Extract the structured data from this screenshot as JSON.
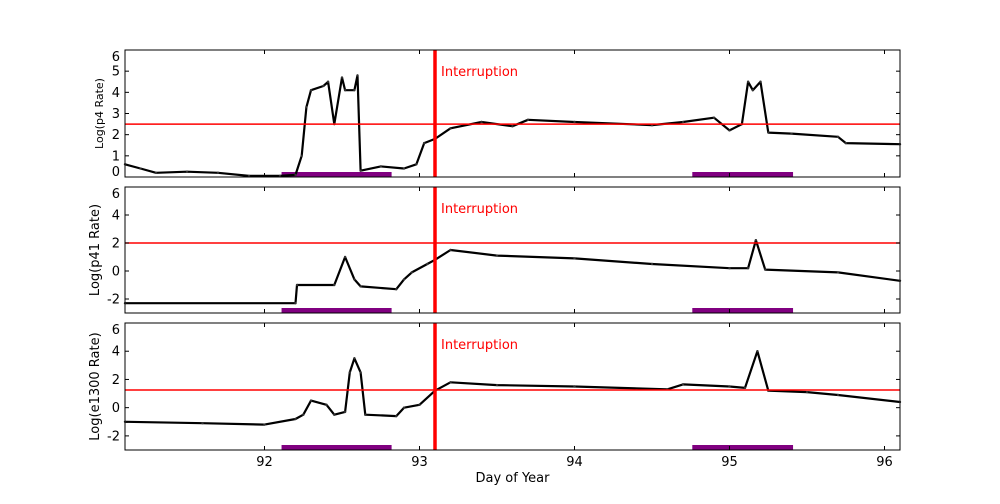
{
  "chart_data": [
    {
      "type": "line",
      "ylabel": "Log(p4 Rate)",
      "xlim": [
        91.1,
        96.1
      ],
      "ylim": [
        0,
        6
      ],
      "yticks": [
        0,
        1,
        2,
        3,
        4,
        5,
        6
      ],
      "threshold": 2.5,
      "annotation": "Interruption",
      "interruption_x": 93.1,
      "bars": [
        [
          92.11,
          92.82
        ],
        [
          94.76,
          95.41
        ]
      ],
      "series": [
        {
          "points": [
            [
              91.1,
              0.6
            ],
            [
              91.2,
              0.4
            ],
            [
              91.3,
              0.2
            ],
            [
              91.5,
              0.25
            ],
            [
              91.7,
              0.2
            ],
            [
              91.9,
              0.05
            ],
            [
              92.1,
              0.05
            ],
            [
              92.2,
              0.1
            ],
            [
              92.24,
              1.0
            ],
            [
              92.27,
              3.3
            ],
            [
              92.3,
              4.1
            ],
            [
              92.38,
              4.3
            ],
            [
              92.41,
              4.5
            ],
            [
              92.45,
              2.5
            ],
            [
              92.5,
              4.7
            ],
            [
              92.52,
              4.1
            ],
            [
              92.58,
              4.1
            ],
            [
              92.6,
              4.8
            ],
            [
              92.62,
              0.3
            ],
            [
              92.75,
              0.5
            ],
            [
              92.9,
              0.4
            ],
            [
              92.98,
              0.6
            ],
            [
              93.03,
              1.6
            ],
            [
              93.1,
              1.8
            ],
            [
              93.2,
              2.3
            ],
            [
              93.4,
              2.6
            ],
            [
              93.6,
              2.4
            ],
            [
              93.7,
              2.7
            ],
            [
              94.0,
              2.6
            ],
            [
              94.5,
              2.45
            ],
            [
              94.7,
              2.6
            ],
            [
              94.9,
              2.8
            ],
            [
              95.0,
              2.2
            ],
            [
              95.08,
              2.5
            ],
            [
              95.12,
              4.5
            ],
            [
              95.15,
              4.1
            ],
            [
              95.2,
              4.5
            ],
            [
              95.25,
              2.1
            ],
            [
              95.4,
              2.05
            ],
            [
              95.7,
              1.9
            ],
            [
              95.75,
              1.6
            ],
            [
              96.1,
              1.55
            ]
          ]
        }
      ]
    },
    {
      "type": "line",
      "ylabel": "Log(p41 Rate)",
      "xlim": [
        91.1,
        96.1
      ],
      "ylim": [
        -3,
        6
      ],
      "yticks": [
        -2,
        0,
        2,
        4,
        6
      ],
      "threshold": 2,
      "annotation": "Interruption",
      "interruption_x": 93.1,
      "bars": [
        [
          92.11,
          92.82
        ],
        [
          94.76,
          95.41
        ]
      ],
      "series": [
        {
          "points": [
            [
              91.1,
              -2.3
            ],
            [
              92.2,
              -2.3
            ],
            [
              92.21,
              -1.0
            ],
            [
              92.45,
              -1.0
            ],
            [
              92.52,
              1.0
            ],
            [
              92.58,
              -0.6
            ],
            [
              92.62,
              -1.1
            ],
            [
              92.85,
              -1.3
            ],
            [
              92.9,
              -0.6
            ],
            [
              92.95,
              -0.1
            ],
            [
              93.05,
              0.5
            ],
            [
              93.1,
              0.8
            ],
            [
              93.2,
              1.5
            ],
            [
              93.5,
              1.1
            ],
            [
              94.0,
              0.9
            ],
            [
              94.5,
              0.5
            ],
            [
              95.0,
              0.2
            ],
            [
              95.12,
              0.2
            ],
            [
              95.17,
              2.2
            ],
            [
              95.23,
              0.1
            ],
            [
              95.7,
              -0.1
            ],
            [
              96.1,
              -0.7
            ]
          ]
        }
      ]
    },
    {
      "type": "line",
      "ylabel": "Log(e1300 Rate)",
      "xlabel": "Day of Year",
      "xlim": [
        91.1,
        96.1
      ],
      "ylim": [
        -3,
        6
      ],
      "xticks": [
        92,
        93,
        94,
        95,
        96
      ],
      "yticks": [
        -2,
        0,
        2,
        4,
        6
      ],
      "threshold": 1.25,
      "annotation": "Interruption",
      "interruption_x": 93.1,
      "bars": [
        [
          92.11,
          92.82
        ],
        [
          94.76,
          95.41
        ]
      ],
      "series": [
        {
          "points": [
            [
              91.1,
              -1.0
            ],
            [
              91.6,
              -1.1
            ],
            [
              92.0,
              -1.2
            ],
            [
              92.2,
              -0.8
            ],
            [
              92.25,
              -0.5
            ],
            [
              92.3,
              0.5
            ],
            [
              92.4,
              0.2
            ],
            [
              92.45,
              -0.5
            ],
            [
              92.52,
              -0.3
            ],
            [
              92.55,
              2.5
            ],
            [
              92.58,
              3.5
            ],
            [
              92.62,
              2.5
            ],
            [
              92.65,
              -0.5
            ],
            [
              92.85,
              -0.6
            ],
            [
              92.9,
              0.0
            ],
            [
              93.0,
              0.2
            ],
            [
              93.1,
              1.2
            ],
            [
              93.2,
              1.8
            ],
            [
              93.5,
              1.6
            ],
            [
              94.0,
              1.5
            ],
            [
              94.6,
              1.3
            ],
            [
              94.7,
              1.65
            ],
            [
              95.0,
              1.5
            ],
            [
              95.1,
              1.4
            ],
            [
              95.18,
              4.0
            ],
            [
              95.25,
              1.2
            ],
            [
              95.5,
              1.1
            ],
            [
              95.7,
              0.9
            ],
            [
              96.1,
              0.4
            ]
          ]
        }
      ]
    }
  ],
  "colors": {
    "data": "#000000",
    "threshold": "#ff0000",
    "bar": "#800080"
  }
}
